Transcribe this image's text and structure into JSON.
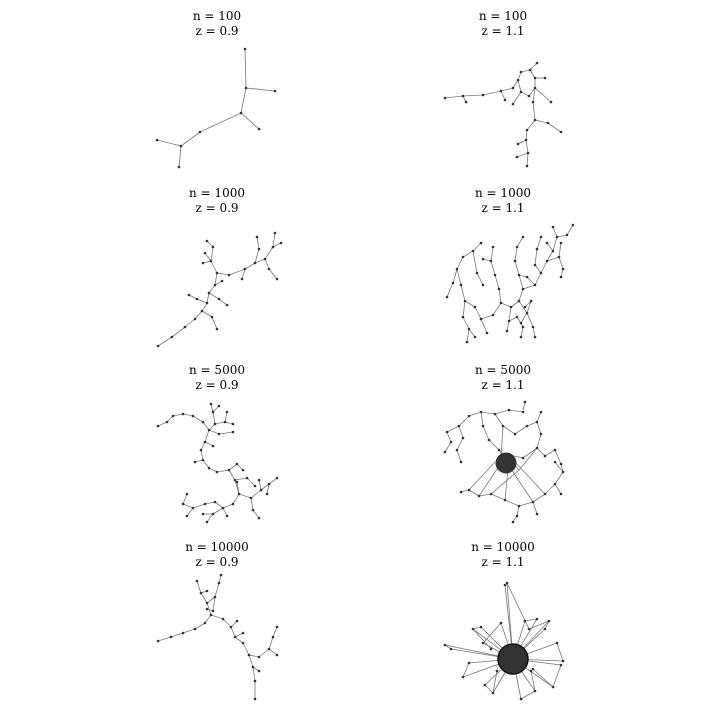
{
  "panels": [
    {
      "n_label": "n = 100",
      "z_label": "z = 0.9"
    },
    {
      "n_label": "n = 100",
      "z_label": "z = 1.1"
    },
    {
      "n_label": "n = 1000",
      "z_label": "z = 0.9"
    },
    {
      "n_label": "n = 1000",
      "z_label": "z = 1.1"
    },
    {
      "n_label": "n = 5000",
      "z_label": "z = 0.9"
    },
    {
      "n_label": "n = 5000",
      "z_label": "z = 1.1"
    },
    {
      "n_label": "n = 10000",
      "z_label": "z = 0.9"
    },
    {
      "n_label": "n = 10000",
      "z_label": "z = 1.1"
    }
  ],
  "colors": {
    "edge": "#777777",
    "node": "#333333",
    "giant_component": "#4a1414"
  }
}
